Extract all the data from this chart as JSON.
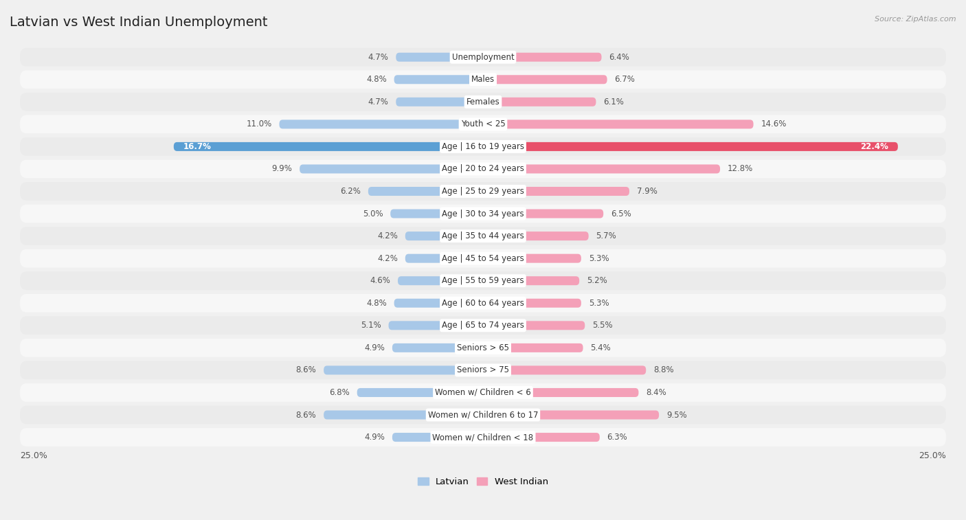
{
  "title": "Latvian vs West Indian Unemployment",
  "source": "Source: ZipAtlas.com",
  "categories": [
    "Unemployment",
    "Males",
    "Females",
    "Youth < 25",
    "Age | 16 to 19 years",
    "Age | 20 to 24 years",
    "Age | 25 to 29 years",
    "Age | 30 to 34 years",
    "Age | 35 to 44 years",
    "Age | 45 to 54 years",
    "Age | 55 to 59 years",
    "Age | 60 to 64 years",
    "Age | 65 to 74 years",
    "Seniors > 65",
    "Seniors > 75",
    "Women w/ Children < 6",
    "Women w/ Children 6 to 17",
    "Women w/ Children < 18"
  ],
  "latvian": [
    4.7,
    4.8,
    4.7,
    11.0,
    16.7,
    9.9,
    6.2,
    5.0,
    4.2,
    4.2,
    4.6,
    4.8,
    5.1,
    4.9,
    8.6,
    6.8,
    8.6,
    4.9
  ],
  "west_indian": [
    6.4,
    6.7,
    6.1,
    14.6,
    22.4,
    12.8,
    7.9,
    6.5,
    5.7,
    5.3,
    5.2,
    5.3,
    5.5,
    5.4,
    8.8,
    8.4,
    9.5,
    6.3
  ],
  "latvian_color": "#a8c8e8",
  "west_indian_color": "#f4a0b8",
  "latvian_color_highlight": "#5b9fd4",
  "west_indian_color_highlight": "#e8506a",
  "row_color_odd": "#ebebeb",
  "row_color_even": "#f7f7f7",
  "bg_color": "#f0f0f0",
  "axis_limit": 25.0,
  "legend_latvian": "Latvian",
  "legend_west_indian": "West Indian",
  "title_fontsize": 14,
  "label_fontsize": 8.5,
  "value_fontsize": 8.5
}
